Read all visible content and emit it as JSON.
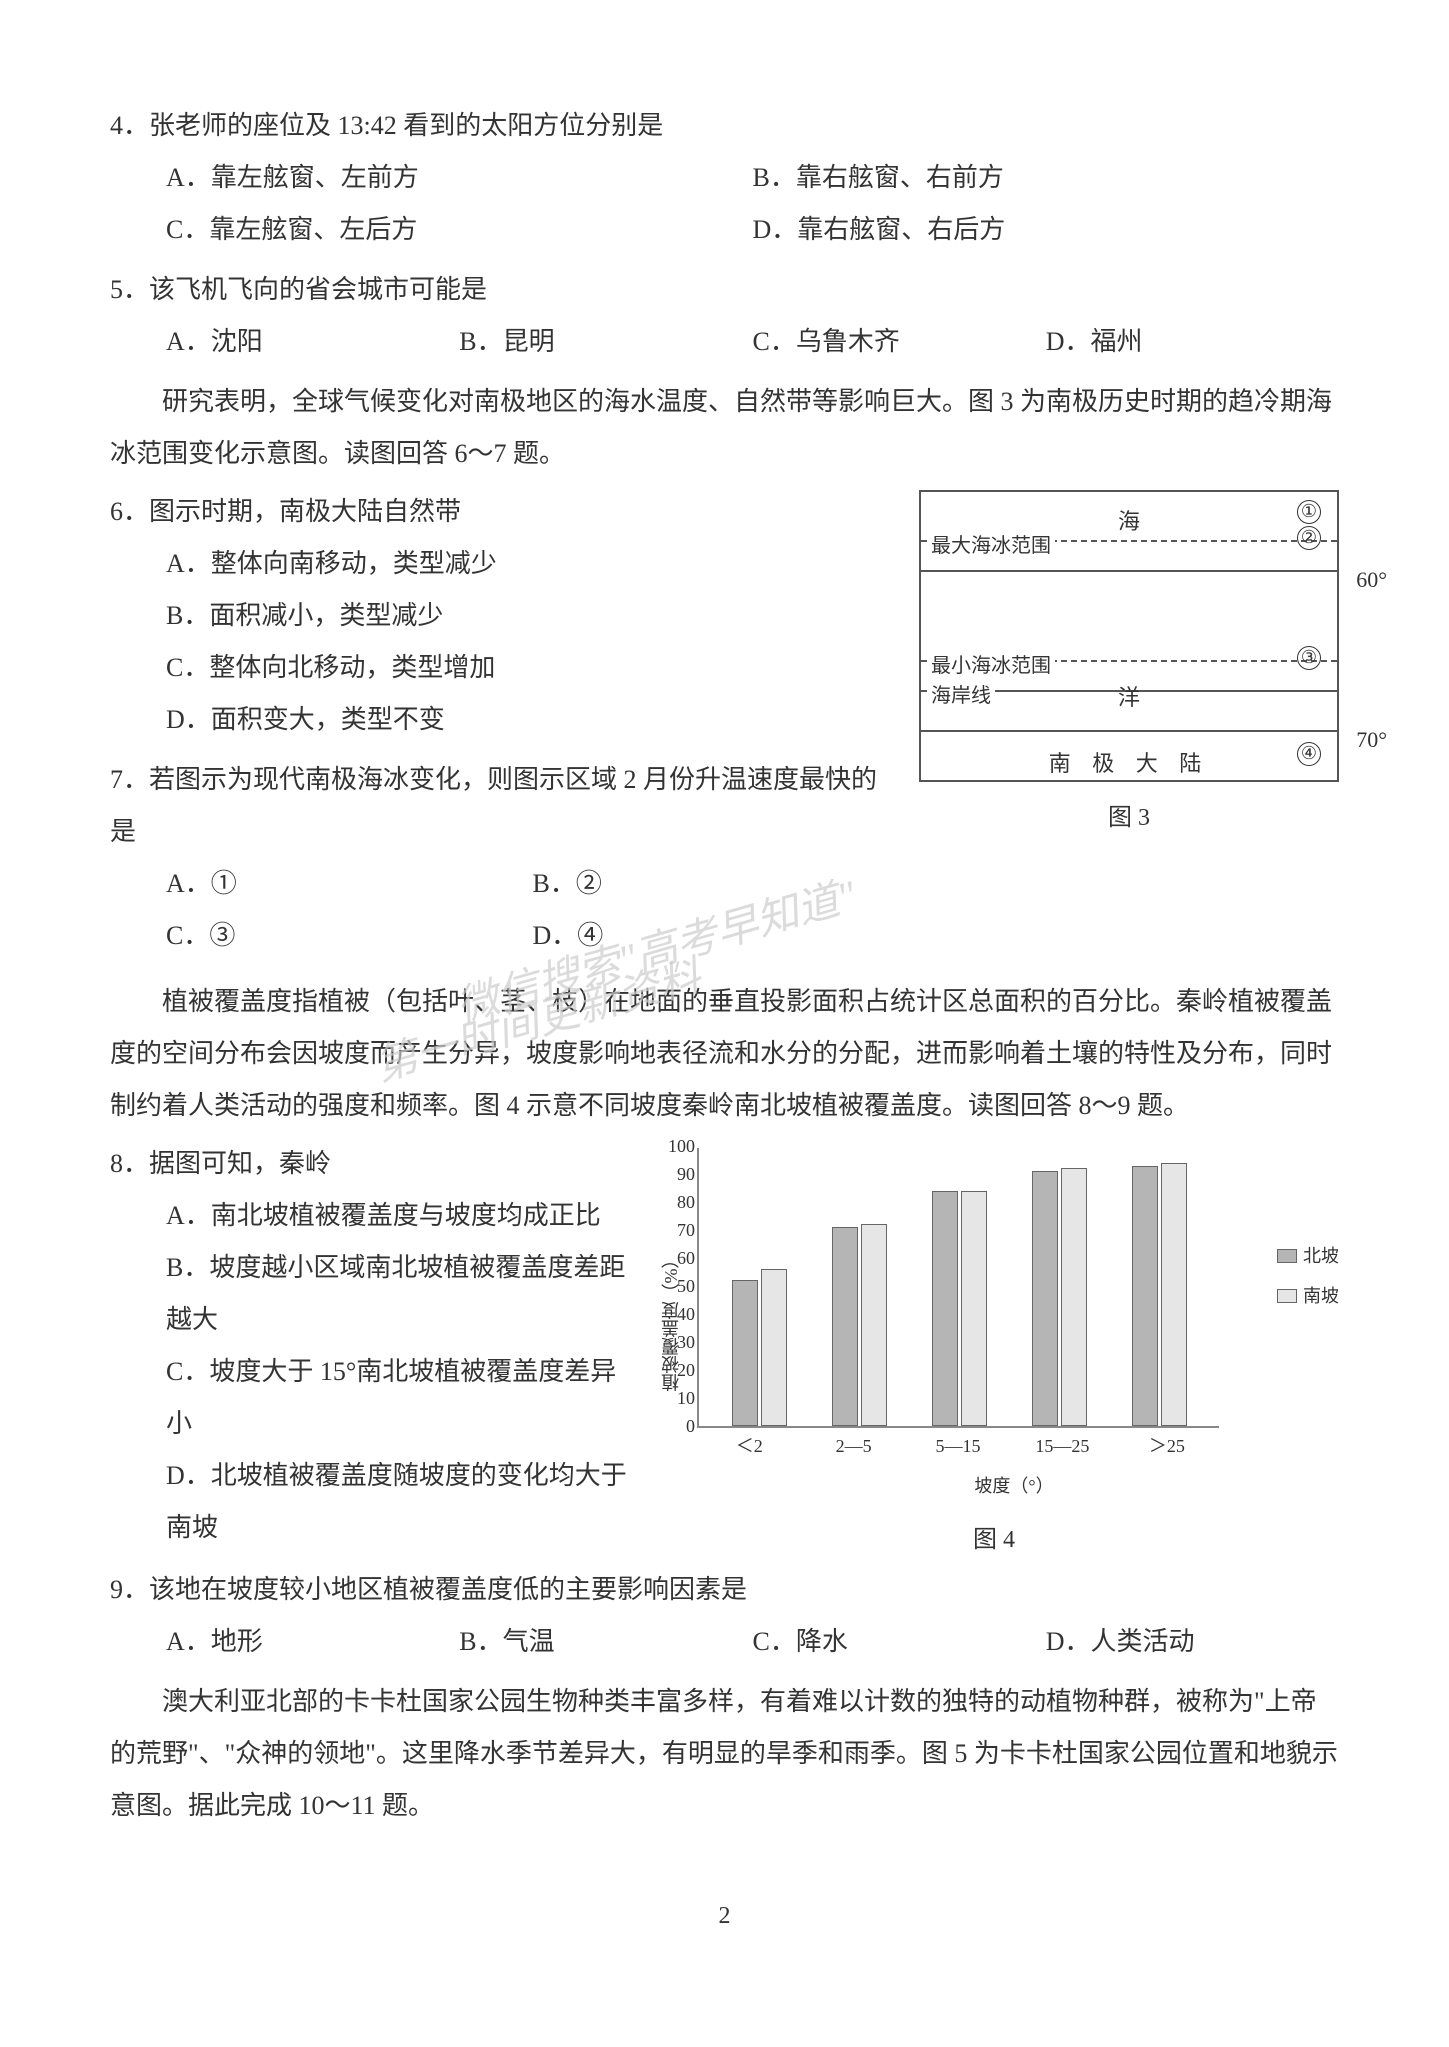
{
  "q4": {
    "text": "4．张老师的座位及 13:42 看到的太阳方位分别是",
    "A": "A．靠左舷窗、左前方",
    "B": "B．靠右舷窗、右前方",
    "C": "C．靠左舷窗、左后方",
    "D": "D．靠右舷窗、右后方"
  },
  "q5": {
    "text": "5．该飞机飞向的省会城市可能是",
    "A": "A．沈阳",
    "B": "B．昆明",
    "C": "C．乌鲁木齐",
    "D": "D．福州"
  },
  "passage1": "研究表明，全球气候变化对南极地区的海水温度、自然带等影响巨大。图 3 为南极历史时期的趋冷期海冰范围变化示意图。读图回答 6～7 题。",
  "q6": {
    "text": "6．图示时期，南极大陆自然带",
    "A": "A．整体向南移动，类型减少",
    "B": "B．面积减小，类型减少",
    "C": "C．整体向北移动，类型增加",
    "D": "D．面积变大，类型不变"
  },
  "q7": {
    "text": "7．若图示为现代南极海冰变化，则图示区域 2 月份升温速度最快的是",
    "A": "A．①",
    "B": "B．②",
    "C": "C．③",
    "D": "D．④"
  },
  "fig3": {
    "sea_label": "海",
    "max_ice": "最大海冰范围",
    "min_ice": "最小海冰范围",
    "coast": "海岸线",
    "ocean": "洋",
    "continent": "南  极  大  陆",
    "tick60": "60°",
    "tick70": "70°",
    "n1": "①",
    "n2": "②",
    "n3": "③",
    "n4": "④",
    "caption": "图 3"
  },
  "passage2": "植被覆盖度指植被（包括叶、茎、枝）在地面的垂直投影面积占统计区总面积的百分比。秦岭植被覆盖度的空间分布会因坡度而产生分异，坡度影响地表径流和水分的分配，进而影响着土壤的特性及分布，同时制约着人类活动的强度和频率。图 4 示意不同坡度秦岭南北坡植被覆盖度。读图回答 8～9 题。",
  "q8": {
    "text": "8．据图可知，秦岭",
    "A": "A．南北坡植被覆盖度与坡度均成正比",
    "B": "B．坡度越小区域南北坡植被覆盖度差距越大",
    "C": "C．坡度大于 15°南北坡植被覆盖度差异小",
    "D": "D．北坡植被覆盖度随坡度的变化均大于南坡"
  },
  "fig4": {
    "type": "bar",
    "categories": [
      "＜2",
      "2—5",
      "5—15",
      "15—25",
      "＞25"
    ],
    "series": [
      {
        "name": "北坡",
        "color": "#b5b5b5",
        "values": [
          52,
          71,
          84,
          91,
          93
        ]
      },
      {
        "name": "南坡",
        "color": "#e6e6e6",
        "values": [
          56,
          72,
          84,
          92,
          94
        ]
      }
    ],
    "ylabel": "植被覆盖度（%）",
    "xlabel": "坡度（°）",
    "ylim_max": 100,
    "ytick_step": 10,
    "yticks": [
      0,
      10,
      20,
      30,
      40,
      50,
      60,
      70,
      80,
      90,
      100
    ],
    "caption": "图 4"
  },
  "q9": {
    "text": "9．该地在坡度较小地区植被覆盖度低的主要影响因素是",
    "A": "A．地形",
    "B": "B．气温",
    "C": "C．降水",
    "D": "D．人类活动"
  },
  "passage3": "澳大利亚北部的卡卡杜国家公园生物种类丰富多样，有着难以计数的独特的动植物种群，被称为\"上帝的荒野\"、\"众神的领地\"。这里降水季节差异大，有明显的旱季和雨季。图 5 为卡卡杜国家公园位置和地貌示意图。据此完成 10～11 题。",
  "watermark": {
    "l1": "微信搜索\"高考早知道\"",
    "l2": "第一时间更新资料"
  },
  "page": "2"
}
